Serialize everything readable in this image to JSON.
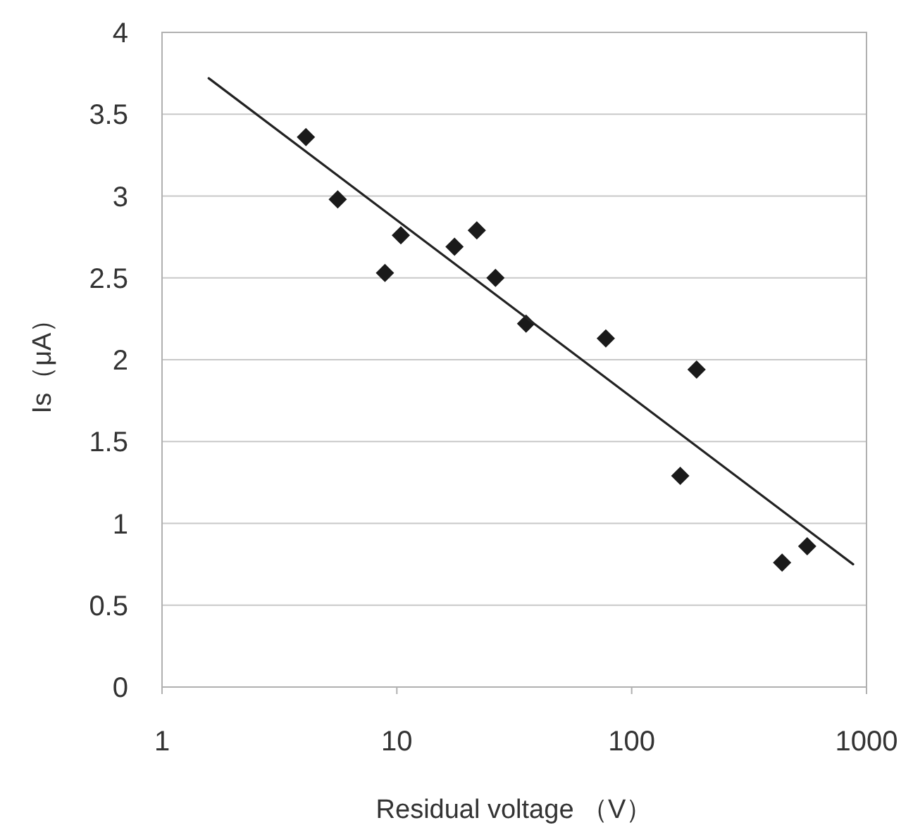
{
  "chart_data": {
    "type": "scatter",
    "xlabel": "Residual voltage （V）",
    "ylabel": "Is（μA）",
    "log": "x",
    "xlim": [
      1,
      1000
    ],
    "xticks": [
      1,
      10,
      100,
      1000
    ],
    "ylim": [
      0,
      4
    ],
    "yticks": [
      0,
      0.5,
      1,
      1.5,
      2,
      2.5,
      3,
      3.5,
      4
    ],
    "grid": "y",
    "marker": "diamond",
    "series": [
      {
        "color": "#1a1a1a",
        "x": [
          4.1,
          5.6,
          8.9,
          10.4,
          17.6,
          21.9,
          26.3,
          35.5,
          77.6,
          161,
          189,
          437,
          559
        ],
        "values": [
          3.36,
          2.98,
          2.53,
          2.76,
          2.69,
          2.79,
          2.5,
          2.22,
          2.13,
          1.29,
          1.94,
          0.76,
          0.86
        ]
      },
      {
        "type": "line",
        "color": "#222222",
        "marker": "none",
        "line_style": "solid",
        "x": [
          1.58,
          877
        ],
        "values": [
          3.72,
          0.75
        ]
      }
    ]
  }
}
